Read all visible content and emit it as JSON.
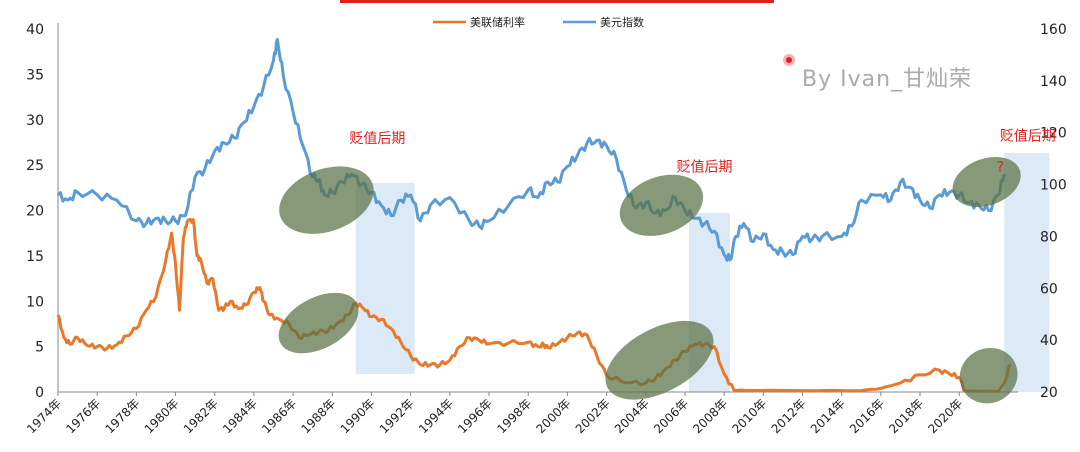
{
  "chart_data": {
    "type": "line",
    "legend": {
      "placement": "top-center"
    },
    "watermark": "By  Ivan_甘灿荣",
    "colors": {
      "fed_rate": "#e8782a",
      "usd_index": "#5b9bd5",
      "band": "#dce9f6",
      "ellipse": "#5a7247",
      "annotation": "#e0201e",
      "top_bar": "#e0201e"
    },
    "y_left": {
      "lim": [
        0,
        40
      ],
      "ticks": [
        "0",
        "5",
        "10",
        "15",
        "20",
        "25",
        "30",
        "35",
        "40"
      ]
    },
    "y_right": {
      "lim": [
        20,
        160
      ],
      "ticks": [
        "20",
        "40",
        "60",
        "80",
        "100",
        "120",
        "140",
        "160"
      ]
    },
    "x": {
      "lim": [
        1974,
        2023
      ],
      "ticks": [
        "1974年",
        "1976年",
        "1978年",
        "1980年",
        "1982年",
        "1984年",
        "1986年",
        "1988年",
        "1990年",
        "1992年",
        "1994年",
        "1996年",
        "1998年",
        "2000年",
        "2002年",
        "2004年",
        "2006年",
        "2008年",
        "2010年",
        "2012年",
        "2014年",
        "2016年",
        "2018年",
        "2020年"
      ]
    },
    "series": [
      {
        "name": "美联储利率",
        "axis": "left",
        "x": [
          1974,
          1974.3,
          1974.6,
          1975,
          1975.5,
          1976,
          1976.5,
          1977,
          1977.5,
          1978,
          1978.5,
          1979,
          1979.5,
          1979.8,
          1980,
          1980.2,
          1980.4,
          1980.6,
          1980.9,
          1981.1,
          1981.3,
          1981.6,
          1981.9,
          1982.2,
          1982.5,
          1982.8,
          1983.2,
          1983.6,
          1984,
          1984.3,
          1984.5,
          1984.8,
          1985.3,
          1985.8,
          1986.3,
          1986.8,
          1987.3,
          1987.8,
          1988.3,
          1988.8,
          1989.2,
          1989.6,
          1990,
          1990.5,
          1991,
          1991.5,
          1992,
          1992.5,
          1993,
          1993.5,
          1994,
          1994.5,
          1995,
          1995.5,
          1996,
          1997,
          1998,
          1998.5,
          1998.8,
          1999,
          1999.5,
          2000,
          2000.5,
          2001,
          2001.5,
          2002,
          2003,
          2004,
          2004.5,
          2005,
          2005.5,
          2006,
          2006.5,
          2007,
          2007.5,
          2008,
          2008.5,
          2009,
          2012,
          2015,
          2016,
          2017,
          2018,
          2019,
          2019.5,
          2020,
          2020.3,
          2022,
          2022.3,
          2022.6
        ],
        "values": [
          8.5,
          6.0,
          5.3,
          6.0,
          5.1,
          5.0,
          4.8,
          5.2,
          6.2,
          7.0,
          9.0,
          10.5,
          14.5,
          17.5,
          14.0,
          9.0,
          17.0,
          18.8,
          19.0,
          15.0,
          14.5,
          12.0,
          12.5,
          9.0,
          9.3,
          10.0,
          9.2,
          9.6,
          11.0,
          11.5,
          10.0,
          8.5,
          8.0,
          7.5,
          6.0,
          6.3,
          6.6,
          6.8,
          7.6,
          8.5,
          9.8,
          9.2,
          8.3,
          8.0,
          7.0,
          5.5,
          4.0,
          3.0,
          3.0,
          3.0,
          3.5,
          5.0,
          6.0,
          5.7,
          5.3,
          5.4,
          5.5,
          5.0,
          5.2,
          4.9,
          5.3,
          6.0,
          6.5,
          6.3,
          4.0,
          1.8,
          1.0,
          1.0,
          1.5,
          2.5,
          3.5,
          4.5,
          5.25,
          5.25,
          5.0,
          2.0,
          0.2,
          0.2,
          0.15,
          0.15,
          0.4,
          1.0,
          1.9,
          2.4,
          2.0,
          1.6,
          0.1,
          0.1,
          1.0,
          3.0
        ]
      },
      {
        "name": "美元指数",
        "axis": "right",
        "x": [
          1974,
          1974.5,
          1975,
          1976,
          1977,
          1978,
          1978.5,
          1979,
          1979.5,
          1980,
          1980.5,
          1981,
          1981.5,
          1982,
          1982.5,
          1983,
          1983.5,
          1984,
          1984.5,
          1985,
          1985.2,
          1985.5,
          1986,
          1986.5,
          1987,
          1987.3,
          1987.6,
          1988,
          1988.5,
          1989,
          1989.5,
          1990,
          1990.5,
          1991,
          1991.5,
          1992,
          1992.5,
          1993,
          1994,
          1995,
          1995.5,
          1996,
          1997,
          1998,
          1998.5,
          1999,
          1999.5,
          2000,
          2000.5,
          2001,
          2001.5,
          2002,
          2002.5,
          2003,
          2003.5,
          2004,
          2004.5,
          2005,
          2005.5,
          2006,
          2006.5,
          2007,
          2007.5,
          2008,
          2008.3,
          2008.6,
          2009,
          2009.5,
          2010,
          2010.5,
          2011,
          2011.5,
          2012,
          2012.5,
          2013,
          2014,
          2014.5,
          2015,
          2016,
          2016.5,
          2017,
          2017.5,
          2018,
          2018.5,
          2019,
          2019.5,
          2020,
          2020.5,
          2021,
          2021.5,
          2022,
          2022.3
        ],
        "values": [
          96,
          94,
          97,
          96,
          94,
          86,
          85,
          87,
          86,
          86,
          88,
          103,
          106,
          113,
          116,
          118,
          124,
          130,
          138,
          148,
          156,
          142,
          128,
          115,
          103,
          102,
          96,
          97,
          101,
          104,
          100,
          97,
          92,
          88,
          94,
          96,
          86,
          92,
          95,
          86,
          84,
          86,
          92,
          98,
          95,
          101,
          101,
          107,
          111,
          116,
          117,
          115,
          110,
          98,
          91,
          93,
          89,
          90,
          95,
          90,
          87,
          85,
          82,
          73,
          71,
          80,
          85,
          78,
          81,
          75,
          74,
          73,
          80,
          79,
          80,
          80,
          84,
          94,
          96,
          94,
          101,
          99,
          94,
          91,
          96,
          97,
          96,
          93,
          92,
          90,
          96,
          104
        ]
      }
    ],
    "annotations": [
      {
        "text": "贬值后期",
        "x": 1990.3,
        "y_right": 116
      },
      {
        "text": "贬值后期",
        "x": 2007.0,
        "y_right": 105
      },
      {
        "text": "贬值后期",
        "x": 2023.5,
        "y_right": 117
      },
      {
        "text": "?",
        "x": 2022.1,
        "y_right": 105
      }
    ],
    "bands": [
      {
        "x0": 1989.2,
        "x1": 1992.2
      },
      {
        "x0": 2006.2,
        "x1": 2008.3
      },
      {
        "x0": 2022.3,
        "x1": 2024.6
      }
    ],
    "ellipses": [
      {
        "cx": 1987.7,
        "cy_right": 94,
        "rx": 2.5,
        "ry_right": 12
      },
      {
        "cx": 1987.3,
        "cy_left": 7.6,
        "rx": 2.2,
        "ry_left": 2.8
      },
      {
        "cx": 2004.8,
        "cy_right": 92,
        "rx": 2.2,
        "ry_right": 11
      },
      {
        "cx": 2004.7,
        "cy_left": 3.5,
        "rx": 3.0,
        "ry_left": 3.5
      },
      {
        "cx": 2021.4,
        "cy_right": 101,
        "rx": 1.8,
        "ry_right": 9
      },
      {
        "cx": 2021.5,
        "cy_left": 1.8,
        "rx": 1.5,
        "ry_left": 3.0
      }
    ]
  }
}
